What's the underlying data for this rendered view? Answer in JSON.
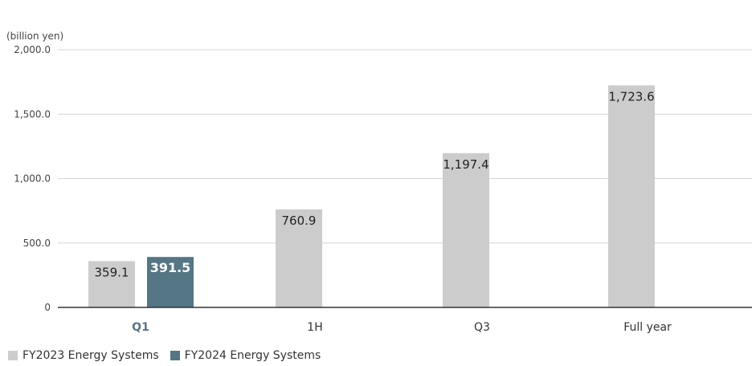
{
  "chart_data": {
    "type": "bar",
    "ylabel": "(billion yen)",
    "ylim": [
      0,
      2000
    ],
    "yticks": [
      "2,000.0",
      "1,500.0",
      "1,000.0",
      "500.0",
      "0"
    ],
    "ytick_values": [
      2000,
      1500,
      1000,
      500,
      0
    ],
    "categories": [
      "Q1",
      "1H",
      "Q3",
      "Full year"
    ],
    "highlight_category": "Q1",
    "grid": true,
    "legend_placement": "bottom-left",
    "series": [
      {
        "name": "FY2023 Energy Systems",
        "color": "#cccccc",
        "values": [
          359.1,
          760.9,
          1197.4,
          1723.6
        ],
        "labels": [
          "359.1",
          "760.9",
          "1,197.4",
          "1,723.6"
        ]
      },
      {
        "name": "FY2024 Energy Systems",
        "color": "#557684",
        "values": [
          391.5,
          null,
          null,
          null
        ],
        "labels": [
          "391.5",
          null,
          null,
          null
        ]
      }
    ]
  }
}
